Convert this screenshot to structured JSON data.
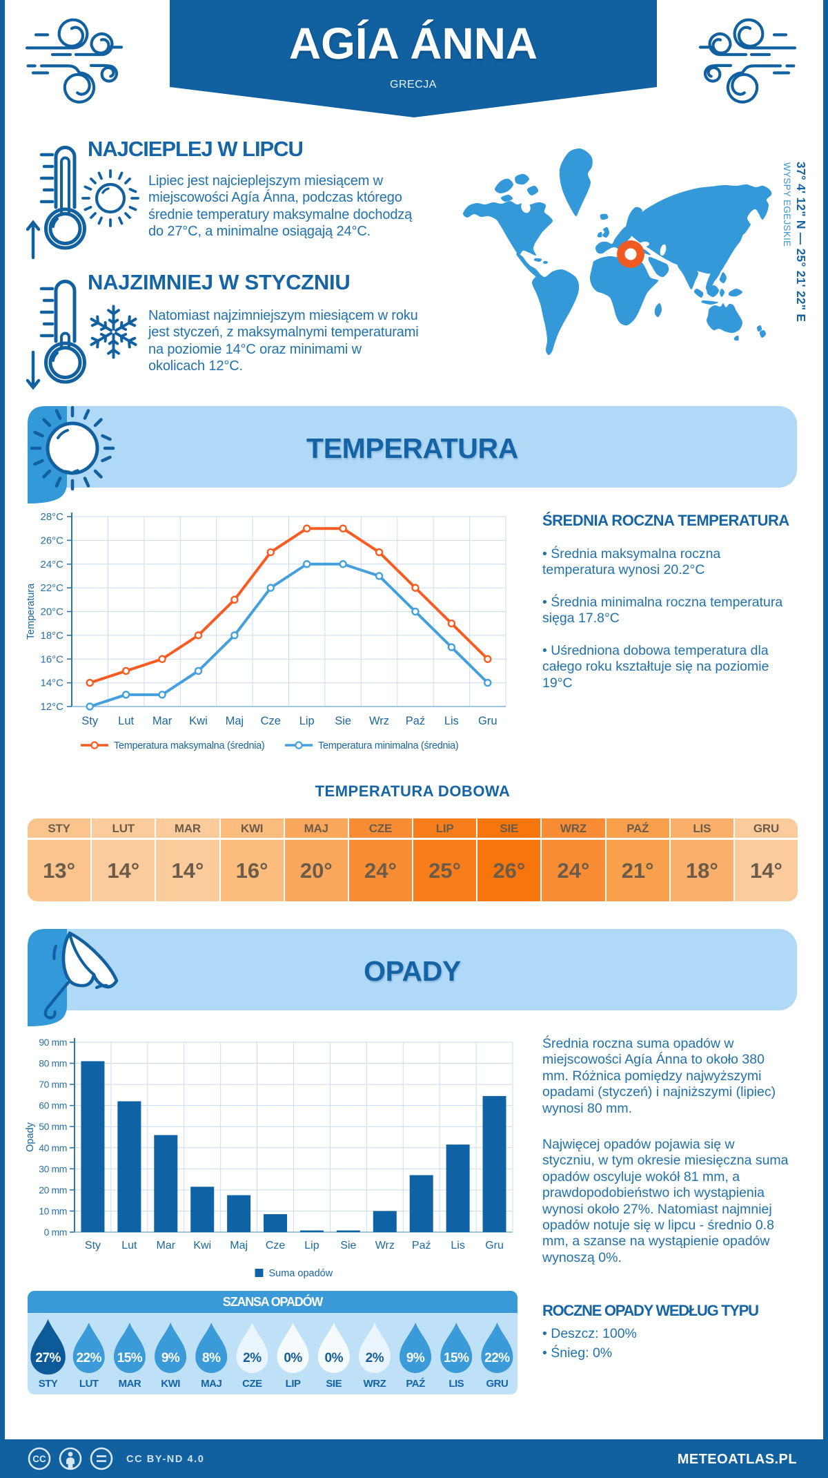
{
  "header": {
    "title": "AGÍA ÁNNA",
    "subtitle": "GRECJA"
  },
  "location": {
    "coordinates": "37° 4' 12\" N — 25° 21' 22\" E",
    "region": "WYSPY EGEJSKIE"
  },
  "warmest": {
    "heading": "NAJCIEPLEJ W LIPCU",
    "text": "Lipiec jest najcieplejszym miesiącem w\nmiejscowości Agía Ánna, podczas którego\nśrednie temperatury maksymalne dochodzą\ndo 27°C, a minimalne osiągają 24°C."
  },
  "coldest": {
    "heading": "NAJZIMNIEJ W STYCZNIU",
    "text": "Natomiast najzimniejszym miesiącem w roku\njest styczeń, z maksymalnymi temperaturami\nna poziomie 14°C oraz minimami w\nokolicach 12°C."
  },
  "temperature_section": {
    "title": "TEMPERATURA",
    "annual": {
      "heading": "ŚREDNIA ROCZNA TEMPERATURA",
      "bullets": [
        "• Średnia maksymalna roczna\ntemperatura wynosi 20.2°C",
        "• Średnia minimalna roczna temperatura\nsięga 17.8°C",
        "• Uśredniona dobowa temperatura dla\ncałego roku kształtuje się na poziomie\n19°C"
      ]
    },
    "daily": {
      "title": "TEMPERATURA DOBOWA",
      "months": [
        "STY",
        "LUT",
        "MAR",
        "KWI",
        "MAJ",
        "CZE",
        "LIP",
        "SIE",
        "WRZ",
        "PAŹ",
        "LIS",
        "GRU"
      ],
      "values": [
        "13°",
        "14°",
        "14°",
        "16°",
        "20°",
        "24°",
        "25°",
        "26°",
        "24°",
        "21°",
        "18°",
        "14°"
      ],
      "cell_colors": [
        "#fbc48d",
        "#fccb9b",
        "#fccb9b",
        "#fbbc7e",
        "#faa75c",
        "#f88d35",
        "#f87d1b",
        "#f7750a",
        "#f88d35",
        "#f9a04c",
        "#fab06b",
        "#fccb9b"
      ]
    }
  },
  "precipitation_section": {
    "title": "OPADY",
    "paragraphs": [
      "Średnia roczna suma opadów w\nmiejscowości Agía Ánna to około 380\nmm. Różnica pomiędzy najwyższymi\nopadami (styczeń) i najniższymi (lipiec)\nwynosi 80 mm.",
      "Najwięcej opadów pojawia się w\nstyczniu, w tym okresie miesięczna suma\nopadów oscyluje wokół 81 mm, a\nprawdopodobieństwo ich wystąpienia\nwynosi około 27%. Natomiast najmniej\nopadów notuje się w lipcu - średnio 0.8\nmm, a szanse na wystąpienie opadów\nwynoszą 0%."
    ],
    "types": {
      "heading": "ROCZNE OPADY WEDŁUG TYPU",
      "bullets": [
        "• Deszcz: 100%",
        "• Śnieg: 0%"
      ]
    },
    "chance": {
      "title": "SZANSA OPADÓW",
      "months": [
        "STY",
        "LUT",
        "MAR",
        "KWI",
        "MAJ",
        "CZE",
        "LIP",
        "SIE",
        "WRZ",
        "PAŹ",
        "LIS",
        "GRU"
      ],
      "values": [
        "27%",
        "22%",
        "15%",
        "9%",
        "8%",
        "2%",
        "0%",
        "0%",
        "2%",
        "9%",
        "15%",
        "22%"
      ],
      "drop_fills": [
        "#0d5a99",
        "#3b9ad8",
        "#3b9ad8",
        "#3b9ad8",
        "#3b9ad8",
        "#e9f4fc",
        "#f5fafd",
        "#f5fafd",
        "#e9f4fc",
        "#3b9ad8",
        "#3b9ad8",
        "#3b9ad8"
      ],
      "drop_text": [
        "#ffffff",
        "#ffffff",
        "#ffffff",
        "#ffffff",
        "#ffffff",
        "#155e9c",
        "#155e9c",
        "#155e9c",
        "#155e9c",
        "#ffffff",
        "#ffffff",
        "#ffffff"
      ]
    }
  },
  "chart_data": [
    {
      "type": "line",
      "categories": [
        "Sty",
        "Lut",
        "Mar",
        "Kwi",
        "Maj",
        "Cze",
        "Lip",
        "Sie",
        "Wrz",
        "Paź",
        "Lis",
        "Gru"
      ],
      "series": [
        {
          "name": "Temperatura maksymalna (średnia)",
          "color": "#f95b20",
          "values": [
            14,
            15,
            16,
            18,
            21,
            25,
            27,
            27,
            25,
            22,
            19,
            16
          ]
        },
        {
          "name": "Temperatura minimalna (średnia)",
          "color": "#43a0dd",
          "values": [
            12,
            13,
            13,
            15,
            18,
            22,
            24,
            24,
            23,
            20,
            17,
            14
          ]
        }
      ],
      "ylabel": "Temperatura",
      "ylim": [
        12,
        28
      ],
      "ystep": 2,
      "yunit": "°C",
      "grid": true,
      "legend_position": "bottom"
    },
    {
      "type": "bar",
      "categories": [
        "Sty",
        "Lut",
        "Mar",
        "Kwi",
        "Maj",
        "Cze",
        "Lip",
        "Sie",
        "Wrz",
        "Paź",
        "Lis",
        "Gru"
      ],
      "series": [
        {
          "name": "Suma opadów",
          "color": "#0f62a3",
          "values": [
            81,
            62,
            46,
            21.5,
            17.5,
            8.5,
            0.8,
            0.8,
            10,
            27,
            41.5,
            64.5
          ]
        }
      ],
      "ylabel": "Opady",
      "ylim": [
        0,
        90
      ],
      "ystep": 10,
      "yunit": " mm",
      "grid": true,
      "legend_position": "bottom"
    }
  ],
  "footer": {
    "license": "CC BY-ND 4.0",
    "brand": "METEOATLAS.PL"
  },
  "colors": {
    "navy": "#1160a0",
    "heading": "#1565a6",
    "body_text": "#2171ad",
    "mid_blue": "#3399d9",
    "light_blue": "#b0d9f7",
    "panel_blue": "#bfe1f8",
    "grid": "#c9dcee",
    "axis": "#2e77ae",
    "orange_line": "#f95b20",
    "min_line": "#43a0dd",
    "map_marker": "#f05a23",
    "bar_fill": "#0f62a3",
    "table_text": "#6b5b49"
  }
}
